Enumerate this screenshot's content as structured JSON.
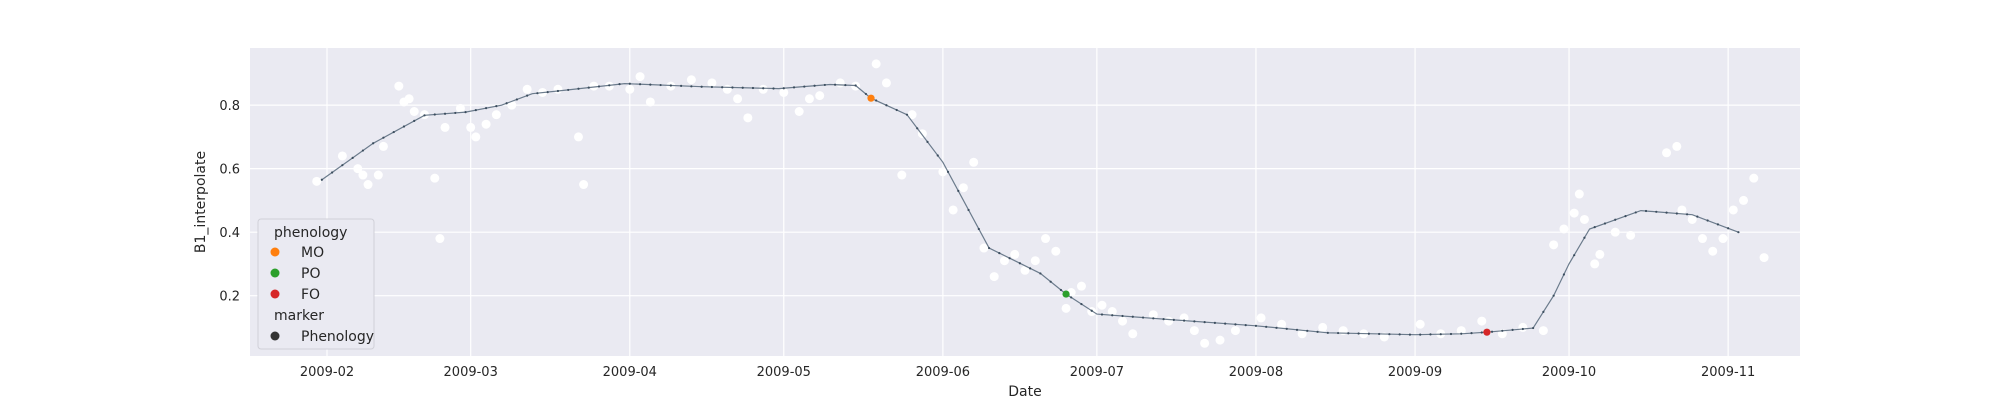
{
  "chart_data": {
    "type": "scatter",
    "title": "",
    "xlabel": "Date",
    "ylabel": "B1_interpolate",
    "xlim": [
      "2009-01-17",
      "2009-11-15"
    ],
    "ylim": [
      0.01,
      0.98
    ],
    "grid": true,
    "x_ticks": [
      "2009-02",
      "2009-03",
      "2009-04",
      "2009-05",
      "2009-06",
      "2009-07",
      "2009-08",
      "2009-09",
      "2009-10",
      "2009-11"
    ],
    "y_ticks": [
      0.2,
      0.4,
      0.6,
      0.8
    ],
    "y_tick_labels": [
      "0.2",
      "0.4",
      "0.6",
      "0.8"
    ],
    "colors": {
      "plot_bg": "#eaeaf2",
      "raw_points": "#ffffff",
      "curve": "#6b7b8c",
      "curve_markers": "#3b4d5e",
      "MO": "#ff7f0e",
      "PO": "#2ca02c",
      "FO": "#d62728",
      "marker_legend": "#333333"
    },
    "legend": {
      "position": "lower-left",
      "hue_title": "phenology",
      "hue_items": [
        {
          "label": "MO",
          "color": "#ff7f0e"
        },
        {
          "label": "PO",
          "color": "#2ca02c"
        },
        {
          "label": "FO",
          "color": "#d62728"
        }
      ],
      "style_title": "marker",
      "style_items": [
        {
          "label": "Phenology",
          "color": "#333333"
        }
      ]
    },
    "curve_keypoints": [
      [
        "2009-01-31",
        0.565
      ],
      [
        "2009-02-10",
        0.68
      ],
      [
        "2009-02-20",
        0.768
      ],
      [
        "2009-02-28",
        0.778
      ],
      [
        "2009-03-07",
        0.8
      ],
      [
        "2009-03-13",
        0.836
      ],
      [
        "2009-03-20",
        0.848
      ],
      [
        "2009-03-31",
        0.868
      ],
      [
        "2009-04-15",
        0.858
      ],
      [
        "2009-04-30",
        0.852
      ],
      [
        "2009-05-10",
        0.865
      ],
      [
        "2009-05-15",
        0.862
      ],
      [
        "2009-05-18",
        0.822
      ],
      [
        "2009-05-25",
        0.77
      ],
      [
        "2009-06-01",
        0.62
      ],
      [
        "2009-06-10",
        0.35
      ],
      [
        "2009-06-20",
        0.27
      ],
      [
        "2009-06-25",
        0.205
      ],
      [
        "2009-07-01",
        0.142
      ],
      [
        "2009-07-15",
        0.125
      ],
      [
        "2009-08-01",
        0.105
      ],
      [
        "2009-08-15",
        0.083
      ],
      [
        "2009-09-01",
        0.077
      ],
      [
        "2009-09-10",
        0.08
      ],
      [
        "2009-09-15",
        0.085
      ],
      [
        "2009-09-24",
        0.098
      ],
      [
        "2009-09-28",
        0.2
      ],
      [
        "2009-10-01",
        0.3
      ],
      [
        "2009-10-05",
        0.41
      ],
      [
        "2009-10-15",
        0.468
      ],
      [
        "2009-10-25",
        0.455
      ],
      [
        "2009-11-03",
        0.4
      ]
    ],
    "raw_points": [
      [
        "2009-01-30",
        0.56
      ],
      [
        "2009-02-04",
        0.64
      ],
      [
        "2009-02-07",
        0.6
      ],
      [
        "2009-02-08",
        0.58
      ],
      [
        "2009-02-09",
        0.55
      ],
      [
        "2009-02-11",
        0.58
      ],
      [
        "2009-02-12",
        0.67
      ],
      [
        "2009-02-15",
        0.86
      ],
      [
        "2009-02-16",
        0.81
      ],
      [
        "2009-02-17",
        0.82
      ],
      [
        "2009-02-18",
        0.78
      ],
      [
        "2009-02-20",
        0.77
      ],
      [
        "2009-02-22",
        0.57
      ],
      [
        "2009-02-23",
        0.38
      ],
      [
        "2009-02-24",
        0.73
      ],
      [
        "2009-02-27",
        0.79
      ],
      [
        "2009-03-01",
        0.73
      ],
      [
        "2009-03-02",
        0.7
      ],
      [
        "2009-03-04",
        0.74
      ],
      [
        "2009-03-06",
        0.77
      ],
      [
        "2009-03-09",
        0.8
      ],
      [
        "2009-03-12",
        0.85
      ],
      [
        "2009-03-15",
        0.84
      ],
      [
        "2009-03-18",
        0.85
      ],
      [
        "2009-03-22",
        0.7
      ],
      [
        "2009-03-23",
        0.55
      ],
      [
        "2009-03-25",
        0.86
      ],
      [
        "2009-03-28",
        0.86
      ],
      [
        "2009-04-01",
        0.85
      ],
      [
        "2009-04-03",
        0.89
      ],
      [
        "2009-04-05",
        0.81
      ],
      [
        "2009-04-09",
        0.86
      ],
      [
        "2009-04-13",
        0.88
      ],
      [
        "2009-04-17",
        0.87
      ],
      [
        "2009-04-20",
        0.85
      ],
      [
        "2009-04-22",
        0.82
      ],
      [
        "2009-04-24",
        0.76
      ],
      [
        "2009-04-27",
        0.85
      ],
      [
        "2009-05-01",
        0.84
      ],
      [
        "2009-05-04",
        0.78
      ],
      [
        "2009-05-06",
        0.82
      ],
      [
        "2009-05-08",
        0.83
      ],
      [
        "2009-05-12",
        0.87
      ],
      [
        "2009-05-15",
        0.86
      ],
      [
        "2009-05-19",
        0.93
      ],
      [
        "2009-05-21",
        0.87
      ],
      [
        "2009-05-24",
        0.58
      ],
      [
        "2009-05-26",
        0.77
      ],
      [
        "2009-05-28",
        0.71
      ],
      [
        "2009-06-01",
        0.59
      ],
      [
        "2009-06-03",
        0.47
      ],
      [
        "2009-06-05",
        0.54
      ],
      [
        "2009-06-07",
        0.62
      ],
      [
        "2009-06-09",
        0.35
      ],
      [
        "2009-06-11",
        0.26
      ],
      [
        "2009-06-13",
        0.31
      ],
      [
        "2009-06-15",
        0.33
      ],
      [
        "2009-06-17",
        0.28
      ],
      [
        "2009-06-19",
        0.31
      ],
      [
        "2009-06-21",
        0.38
      ],
      [
        "2009-06-23",
        0.34
      ],
      [
        "2009-06-25",
        0.16
      ],
      [
        "2009-06-26",
        0.21
      ],
      [
        "2009-06-28",
        0.23
      ],
      [
        "2009-06-30",
        0.15
      ],
      [
        "2009-07-02",
        0.17
      ],
      [
        "2009-07-04",
        0.15
      ],
      [
        "2009-07-06",
        0.12
      ],
      [
        "2009-07-08",
        0.08
      ],
      [
        "2009-07-12",
        0.14
      ],
      [
        "2009-07-15",
        0.12
      ],
      [
        "2009-07-18",
        0.13
      ],
      [
        "2009-07-20",
        0.09
      ],
      [
        "2009-07-22",
        0.05
      ],
      [
        "2009-07-25",
        0.06
      ],
      [
        "2009-07-28",
        0.09
      ],
      [
        "2009-08-02",
        0.13
      ],
      [
        "2009-08-06",
        0.11
      ],
      [
        "2009-08-10",
        0.08
      ],
      [
        "2009-08-14",
        0.1
      ],
      [
        "2009-08-18",
        0.09
      ],
      [
        "2009-08-22",
        0.08
      ],
      [
        "2009-08-26",
        0.07
      ],
      [
        "2009-09-02",
        0.11
      ],
      [
        "2009-09-06",
        0.08
      ],
      [
        "2009-09-10",
        0.09
      ],
      [
        "2009-09-14",
        0.12
      ],
      [
        "2009-09-18",
        0.08
      ],
      [
        "2009-09-22",
        0.1
      ],
      [
        "2009-09-26",
        0.09
      ],
      [
        "2009-09-28",
        0.36
      ],
      [
        "2009-09-30",
        0.41
      ],
      [
        "2009-10-02",
        0.46
      ],
      [
        "2009-10-03",
        0.52
      ],
      [
        "2009-10-04",
        0.44
      ],
      [
        "2009-10-06",
        0.3
      ],
      [
        "2009-10-07",
        0.33
      ],
      [
        "2009-10-10",
        0.4
      ],
      [
        "2009-10-13",
        0.39
      ],
      [
        "2009-10-20",
        0.65
      ],
      [
        "2009-10-22",
        0.67
      ],
      [
        "2009-10-23",
        0.47
      ],
      [
        "2009-10-25",
        0.44
      ],
      [
        "2009-10-27",
        0.38
      ],
      [
        "2009-10-29",
        0.34
      ],
      [
        "2009-10-31",
        0.38
      ],
      [
        "2009-11-02",
        0.47
      ],
      [
        "2009-11-04",
        0.5
      ],
      [
        "2009-11-06",
        0.57
      ],
      [
        "2009-11-08",
        0.32
      ]
    ],
    "phenology_points": [
      {
        "label": "MO",
        "date": "2009-05-18",
        "value": 0.822
      },
      {
        "label": "PO",
        "date": "2009-06-25",
        "value": 0.205
      },
      {
        "label": "FO",
        "date": "2009-09-15",
        "value": 0.085
      }
    ]
  }
}
